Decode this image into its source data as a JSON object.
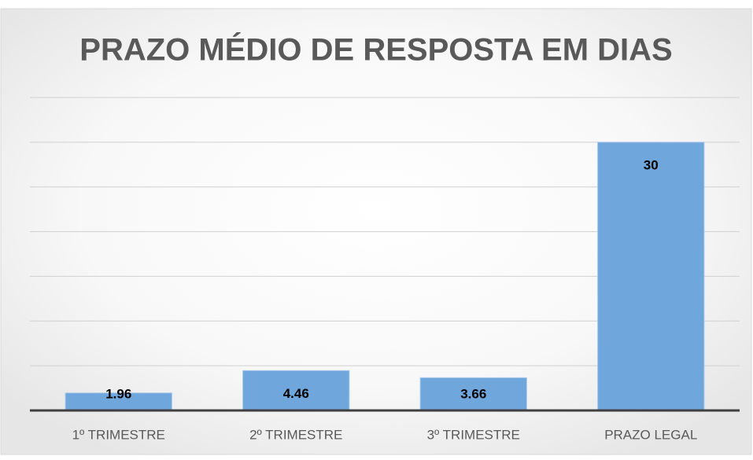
{
  "chart_data": {
    "type": "bar",
    "title": "PRAZO MÉDIO DE RESPOSTA EM DIAS",
    "categories": [
      "1º TRIMESTRE",
      "2º TRIMESTRE",
      "3º TRIMESTRE",
      "PRAZO LEGAL"
    ],
    "values": [
      1.96,
      4.46,
      3.66,
      30
    ],
    "color": "#6fa6dc",
    "ylim": [
      0,
      35
    ],
    "yticks": [
      0,
      5,
      10,
      15,
      20,
      25,
      30,
      35
    ],
    "grid": true
  }
}
